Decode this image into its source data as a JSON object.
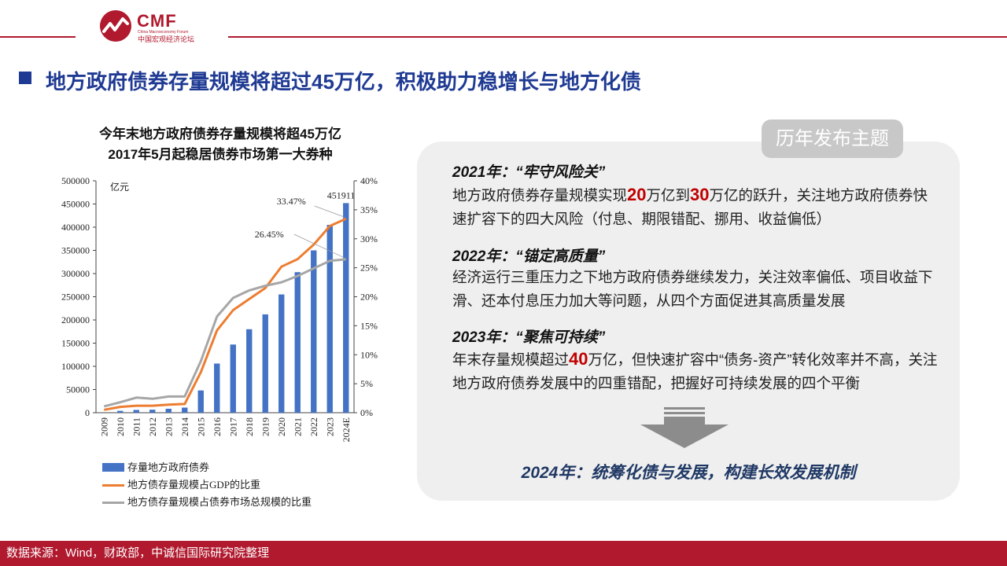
{
  "logo": {
    "brand": "CMF",
    "en": "China Macroeconomy Forum",
    "cn": "中国宏观经济论坛"
  },
  "title": "地方政府债券存量规模将超过45万亿，积极助力稳增长与地方化债",
  "chart_title_1": "今年末地方政府债券存量规模将超45万亿",
  "chart_title_2": "2017年5月起稳居债券市场第一大券种",
  "chart_data": {
    "type": "bar",
    "categories": [
      "2009",
      "2010",
      "2011",
      "2012",
      "2013",
      "2014",
      "2015",
      "2016",
      "2017",
      "2018",
      "2019",
      "2020",
      "2021",
      "2022",
      "2023",
      "2024E"
    ],
    "unit_label": "亿元",
    "ylim": [
      0,
      500000
    ],
    "y_ticks": [
      "0",
      "50000",
      "100000",
      "150000",
      "200000",
      "250000",
      "300000",
      "350000",
      "400000",
      "450000",
      "500000"
    ],
    "y2lim": [
      0,
      0.4
    ],
    "y2_ticks": [
      "0%",
      "5%",
      "10%",
      "15%",
      "20%",
      "25%",
      "30%",
      "35%",
      "40%"
    ],
    "bar_color": "#4472c4",
    "series": [
      {
        "name": "存量地方政府债券",
        "axis": "left",
        "color": "#4472c4",
        "values": [
          0,
          4000,
          6000,
          6500,
          8500,
          11000,
          48000,
          106000,
          147000,
          180000,
          212000,
          255000,
          303000,
          350000,
          405000,
          451911
        ]
      },
      {
        "name": "地方债存量规模占GDP的比重",
        "axis": "right",
        "color": "#ed7d31",
        "values": [
          0.005,
          0.01,
          0.012,
          0.012,
          0.014,
          0.015,
          0.07,
          0.142,
          0.177,
          0.196,
          0.215,
          0.252,
          0.265,
          0.29,
          0.322,
          0.3347
        ]
      },
      {
        "name": "地方债存量规模占债券市场总规模的比重",
        "axis": "right",
        "color": "#a6a6a6",
        "values": [
          0.011,
          0.018,
          0.026,
          0.024,
          0.028,
          0.028,
          0.089,
          0.166,
          0.198,
          0.211,
          0.219,
          0.225,
          0.236,
          0.249,
          0.262,
          0.2645
        ]
      }
    ],
    "annotations": {
      "bar_last": "451911",
      "gdp_last": "33.47%",
      "market_last": "26.45%"
    }
  },
  "panel": {
    "tab": "历年发布主题",
    "s1": {
      "head": "2021年：“牢守风险关”",
      "p_a": "地方政府债券存量规模实现",
      "n1": "20",
      "p_b": "万亿到",
      "n2": "30",
      "p_c": "万亿的跃升，关注地方政府债券快速扩容下的四大风险（付息、期限错配、挪用、收益偏低）"
    },
    "s2": {
      "head": "2022年：“锚定高质量”",
      "p": "经济运行三重压力之下地方政府债券继续发力，关注效率偏低、项目收益下滑、还本付息压力加大等问题，从四个方面促进其高质量发展"
    },
    "s3": {
      "head": "2023年：“聚焦可持续”",
      "p_a": "年末存量规模超过",
      "n1": "40",
      "p_b": "万亿，但快速扩容中“债务-资产”转化效率并不高，关注地方政府债券发展中的四重错配，把握好可持续发展的四个平衡"
    },
    "final": "2024年：统筹化债与发展，构建长效发展机制"
  },
  "footer": "数据来源：Wind，财政部，中诚信国际研究院整理"
}
